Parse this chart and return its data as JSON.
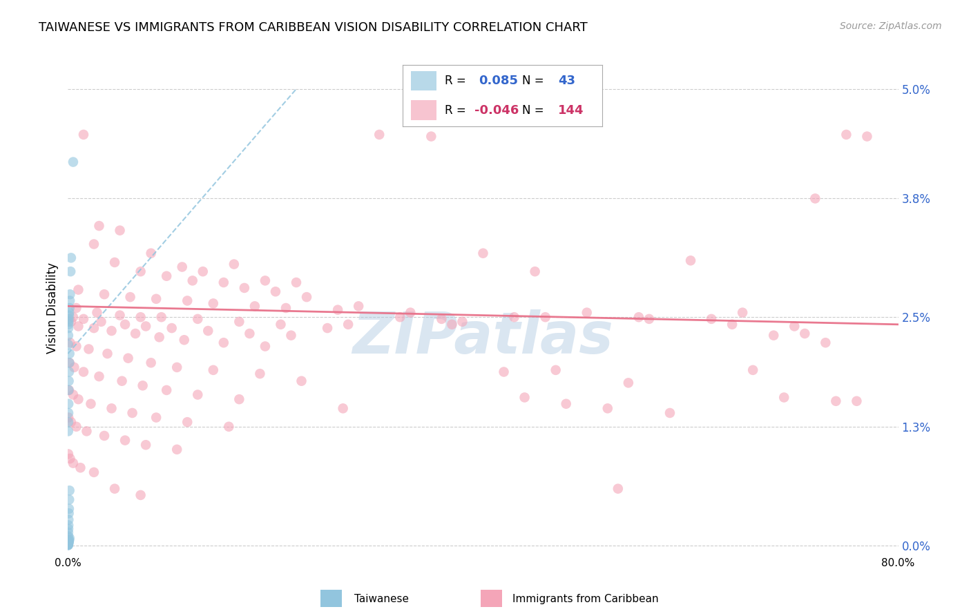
{
  "title": "TAIWANESE VS IMMIGRANTS FROM CARIBBEAN VISION DISABILITY CORRELATION CHART",
  "source": "Source: ZipAtlas.com",
  "ylabel": "Vision Disability",
  "ytick_labels": [
    "0.0%",
    "1.3%",
    "2.5%",
    "3.8%",
    "5.0%"
  ],
  "ytick_values": [
    0.0,
    1.3,
    2.5,
    3.8,
    5.0
  ],
  "xlim": [
    0.0,
    80.0
  ],
  "ylim": [
    -0.1,
    5.3
  ],
  "plot_ylim": [
    0.0,
    5.0
  ],
  "watermark": "ZIPatlas",
  "blue_color": "#92c5de",
  "pink_color": "#f4a5b8",
  "blue_line_color": "#92c5de",
  "pink_line_color": "#e8728a",
  "blue_r": "0.085",
  "blue_n": "43",
  "pink_r": "-0.046",
  "pink_n": "144",
  "blue_scatter": [
    [
      0.5,
      4.2
    ],
    [
      0.3,
      3.15
    ],
    [
      0.25,
      3.0
    ],
    [
      0.2,
      2.75
    ],
    [
      0.18,
      2.68
    ],
    [
      0.15,
      2.6
    ],
    [
      0.12,
      2.55
    ],
    [
      0.1,
      2.52
    ],
    [
      0.08,
      2.48
    ],
    [
      0.06,
      2.45
    ],
    [
      0.05,
      2.42
    ],
    [
      0.04,
      2.38
    ],
    [
      0.03,
      2.3
    ],
    [
      0.02,
      2.2
    ],
    [
      0.15,
      2.1
    ],
    [
      0.12,
      2.0
    ],
    [
      0.1,
      1.9
    ],
    [
      0.08,
      1.8
    ],
    [
      0.06,
      1.7
    ],
    [
      0.05,
      1.55
    ],
    [
      0.04,
      1.45
    ],
    [
      0.03,
      1.35
    ],
    [
      0.02,
      1.25
    ],
    [
      0.15,
      0.6
    ],
    [
      0.12,
      0.5
    ],
    [
      0.1,
      0.4
    ],
    [
      0.08,
      0.35
    ],
    [
      0.06,
      0.28
    ],
    [
      0.05,
      0.22
    ],
    [
      0.04,
      0.18
    ],
    [
      0.03,
      0.14
    ],
    [
      0.02,
      0.1
    ],
    [
      0.15,
      0.08
    ],
    [
      0.12,
      0.06
    ],
    [
      0.1,
      0.05
    ],
    [
      0.08,
      0.04
    ],
    [
      0.06,
      0.03
    ],
    [
      0.05,
      0.02
    ],
    [
      0.04,
      0.015
    ],
    [
      0.03,
      0.01
    ],
    [
      0.02,
      0.005
    ],
    [
      0.015,
      0.002
    ],
    [
      0.01,
      0.001
    ]
  ],
  "pink_scatter": [
    [
      1.5,
      4.5
    ],
    [
      3.0,
      3.5
    ],
    [
      5.0,
      3.45
    ],
    [
      8.0,
      3.2
    ],
    [
      11.0,
      3.05
    ],
    [
      13.0,
      3.0
    ],
    [
      16.0,
      3.08
    ],
    [
      19.0,
      2.9
    ],
    [
      22.0,
      2.88
    ],
    [
      2.5,
      3.3
    ],
    [
      4.5,
      3.1
    ],
    [
      7.0,
      3.0
    ],
    [
      9.5,
      2.95
    ],
    [
      12.0,
      2.9
    ],
    [
      15.0,
      2.88
    ],
    [
      17.0,
      2.82
    ],
    [
      20.0,
      2.78
    ],
    [
      23.0,
      2.72
    ],
    [
      1.0,
      2.8
    ],
    [
      3.5,
      2.75
    ],
    [
      6.0,
      2.72
    ],
    [
      8.5,
      2.7
    ],
    [
      11.5,
      2.68
    ],
    [
      14.0,
      2.65
    ],
    [
      18.0,
      2.62
    ],
    [
      21.0,
      2.6
    ],
    [
      26.0,
      2.58
    ],
    [
      0.8,
      2.6
    ],
    [
      2.8,
      2.55
    ],
    [
      5.0,
      2.52
    ],
    [
      7.0,
      2.5
    ],
    [
      9.0,
      2.5
    ],
    [
      12.5,
      2.48
    ],
    [
      16.5,
      2.45
    ],
    [
      20.5,
      2.42
    ],
    [
      25.0,
      2.38
    ],
    [
      0.5,
      2.5
    ],
    [
      1.5,
      2.48
    ],
    [
      3.2,
      2.45
    ],
    [
      5.5,
      2.42
    ],
    [
      7.5,
      2.4
    ],
    [
      10.0,
      2.38
    ],
    [
      13.5,
      2.35
    ],
    [
      17.5,
      2.32
    ],
    [
      21.5,
      2.3
    ],
    [
      0.3,
      2.45
    ],
    [
      1.0,
      2.4
    ],
    [
      2.5,
      2.38
    ],
    [
      4.2,
      2.35
    ],
    [
      6.5,
      2.32
    ],
    [
      8.8,
      2.28
    ],
    [
      11.2,
      2.25
    ],
    [
      15.0,
      2.22
    ],
    [
      19.0,
      2.18
    ],
    [
      0.2,
      2.22
    ],
    [
      0.8,
      2.18
    ],
    [
      2.0,
      2.15
    ],
    [
      3.8,
      2.1
    ],
    [
      5.8,
      2.05
    ],
    [
      8.0,
      2.0
    ],
    [
      10.5,
      1.95
    ],
    [
      14.0,
      1.92
    ],
    [
      18.5,
      1.88
    ],
    [
      0.15,
      2.0
    ],
    [
      0.6,
      1.95
    ],
    [
      1.5,
      1.9
    ],
    [
      3.0,
      1.85
    ],
    [
      5.2,
      1.8
    ],
    [
      7.2,
      1.75
    ],
    [
      9.5,
      1.7
    ],
    [
      12.5,
      1.65
    ],
    [
      16.5,
      1.6
    ],
    [
      0.1,
      1.7
    ],
    [
      0.5,
      1.65
    ],
    [
      1.0,
      1.6
    ],
    [
      2.2,
      1.55
    ],
    [
      4.2,
      1.5
    ],
    [
      6.2,
      1.45
    ],
    [
      8.5,
      1.4
    ],
    [
      11.5,
      1.35
    ],
    [
      15.5,
      1.3
    ],
    [
      0.05,
      1.4
    ],
    [
      0.3,
      1.35
    ],
    [
      0.8,
      1.3
    ],
    [
      1.8,
      1.25
    ],
    [
      3.5,
      1.2
    ],
    [
      5.5,
      1.15
    ],
    [
      7.5,
      1.1
    ],
    [
      10.5,
      1.05
    ],
    [
      0.03,
      1.0
    ],
    [
      0.2,
      0.95
    ],
    [
      0.5,
      0.9
    ],
    [
      1.2,
      0.85
    ],
    [
      2.5,
      0.8
    ],
    [
      4.5,
      0.62
    ],
    [
      7.0,
      0.55
    ],
    [
      30.0,
      4.5
    ],
    [
      35.0,
      4.48
    ],
    [
      40.0,
      3.2
    ],
    [
      45.0,
      3.0
    ],
    [
      50.0,
      2.55
    ],
    [
      55.0,
      2.5
    ],
    [
      60.0,
      3.12
    ],
    [
      65.0,
      2.55
    ],
    [
      70.0,
      2.4
    ],
    [
      75.0,
      4.5
    ],
    [
      77.0,
      4.48
    ],
    [
      72.0,
      3.8
    ],
    [
      68.0,
      2.3
    ],
    [
      28.0,
      2.62
    ],
    [
      32.0,
      2.5
    ],
    [
      38.0,
      2.45
    ],
    [
      42.0,
      1.9
    ],
    [
      48.0,
      1.55
    ],
    [
      52.0,
      1.5
    ],
    [
      58.0,
      1.45
    ],
    [
      53.0,
      0.62
    ],
    [
      27.0,
      2.42
    ],
    [
      33.0,
      2.55
    ],
    [
      37.0,
      2.42
    ],
    [
      43.0,
      2.5
    ],
    [
      47.0,
      1.92
    ],
    [
      22.5,
      1.8
    ],
    [
      26.5,
      1.5
    ],
    [
      36.0,
      2.48
    ],
    [
      44.0,
      1.62
    ],
    [
      46.0,
      2.5
    ],
    [
      54.0,
      1.78
    ],
    [
      56.0,
      2.48
    ],
    [
      62.0,
      2.48
    ],
    [
      64.0,
      2.42
    ],
    [
      66.0,
      1.92
    ],
    [
      69.0,
      1.62
    ],
    [
      71.0,
      2.32
    ],
    [
      73.0,
      2.22
    ],
    [
      74.0,
      1.58
    ],
    [
      76.0,
      1.58
    ]
  ],
  "blue_trend_x": [
    0.0,
    22.0
  ],
  "blue_trend_y": [
    2.1,
    5.0
  ],
  "pink_trend_x": [
    0.0,
    80.0
  ],
  "pink_trend_y": [
    2.62,
    2.42
  ],
  "xtick_positions": [
    0,
    10,
    20,
    30,
    40,
    50,
    60,
    70,
    80
  ],
  "grid_color": "#cccccc",
  "background_color": "#ffffff"
}
